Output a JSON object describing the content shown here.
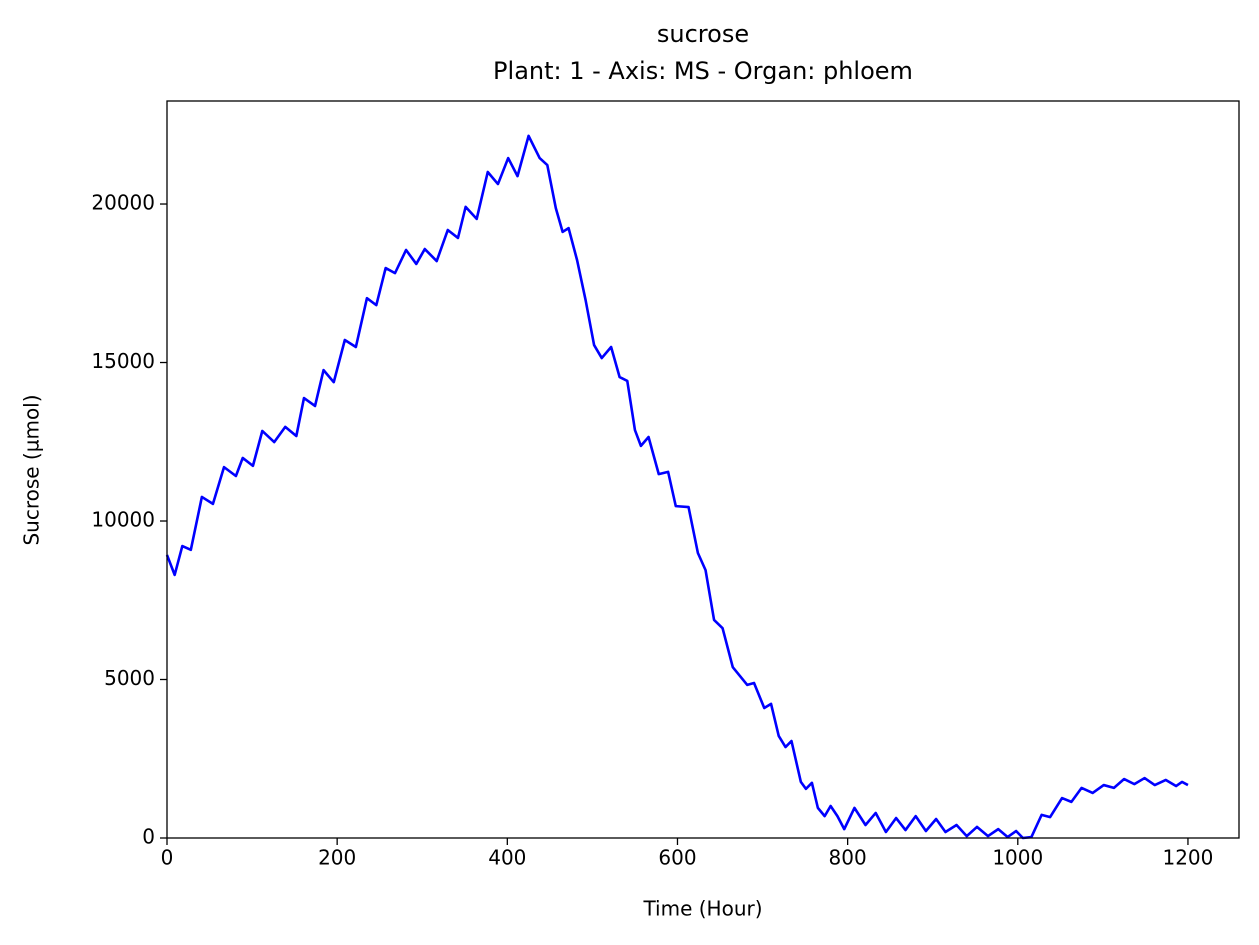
{
  "chart_data": {
    "type": "line",
    "title": "sucrose",
    "subtitle": "Plant: 1 - Axis: MS - Organ: phloem",
    "xlabel": "Time (Hour)",
    "ylabel": "Sucrose (µmol)",
    "x": [
      0,
      9,
      18,
      28,
      41,
      54,
      67,
      81,
      89,
      101,
      112,
      126,
      139,
      152,
      161,
      174,
      184,
      196,
      209,
      222,
      235,
      246,
      257,
      268,
      281,
      293,
      303,
      317,
      330,
      342,
      351,
      364,
      377,
      389,
      401,
      412,
      425,
      438,
      447,
      457,
      465,
      472,
      482,
      492,
      502,
      511,
      522,
      532,
      541,
      550,
      557,
      566,
      578,
      589,
      598,
      613,
      624,
      633,
      643,
      653,
      665,
      682,
      690,
      702,
      710,
      719,
      727,
      734,
      745,
      751,
      758,
      765,
      773,
      780,
      788,
      796,
      808,
      821,
      833,
      845,
      857,
      868,
      880,
      892,
      904,
      915,
      928,
      940,
      952,
      965,
      977,
      988,
      998,
      1006,
      1016,
      1028,
      1038,
      1052,
      1063,
      1075,
      1088,
      1101,
      1113,
      1125,
      1137,
      1149,
      1161,
      1174,
      1186,
      1193,
      1200
    ],
    "series": [
      {
        "name": "sucrose",
        "color": "#0000ff",
        "values": [
          8930,
          8300,
          9210,
          9090,
          10760,
          10540,
          11700,
          11420,
          11990,
          11740,
          12840,
          12490,
          12970,
          12680,
          13880,
          13630,
          14760,
          14380,
          15710,
          15490,
          17030,
          16810,
          17980,
          17820,
          18550,
          18110,
          18580,
          18200,
          19180,
          18930,
          19910,
          19530,
          21010,
          20630,
          21450,
          20880,
          22150,
          21450,
          21230,
          19870,
          19120,
          19240,
          18230,
          16970,
          15550,
          15140,
          15490,
          14540,
          14420,
          12870,
          12370,
          12650,
          11480,
          11550,
          10470,
          10440,
          8990,
          8450,
          6880,
          6620,
          5390,
          4830,
          4890,
          4100,
          4230,
          3220,
          2870,
          3060,
          1770,
          1550,
          1740,
          950,
          690,
          1010,
          690,
          280,
          950,
          410,
          790,
          190,
          630,
          250,
          690,
          220,
          600,
          190,
          410,
          60,
          350,
          60,
          280,
          30,
          220,
          0,
          30,
          730,
          660,
          1260,
          1140,
          1580,
          1420,
          1670,
          1580,
          1860,
          1700,
          1890,
          1670,
          1830,
          1640,
          1770,
          1670
        ]
      }
    ],
    "xlim": [
      0,
      1260
    ],
    "ylim": [
      0,
      23250
    ],
    "xticks": [
      0,
      200,
      400,
      600,
      800,
      1000,
      1200
    ],
    "yticks": [
      0,
      5000,
      10000,
      15000,
      20000
    ],
    "grid": false
  }
}
